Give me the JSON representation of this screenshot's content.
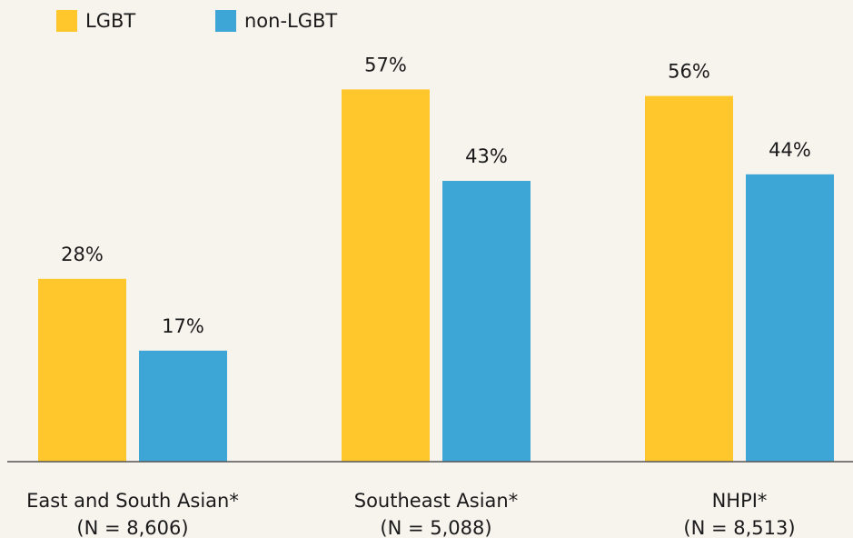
{
  "chart_data": {
    "type": "bar",
    "categories": [
      [
        "East and South Asian*",
        "(N = 8,606)"
      ],
      [
        "Southeast Asian*",
        "(N = 5,088)"
      ],
      [
        "NHPI*",
        "(N = 8,513)"
      ]
    ],
    "series": [
      {
        "name": "LGBT",
        "color": "#ffc72c",
        "values": [
          28,
          57,
          56
        ],
        "value_labels": [
          "28%",
          "57%",
          "56%"
        ]
      },
      {
        "name": "non-LGBT",
        "color": "#3ea6d6",
        "values": [
          17,
          43,
          44
        ],
        "value_labels": [
          "17%",
          "43%",
          "44%"
        ]
      }
    ],
    "ylim": [
      0,
      70
    ],
    "legend": "top-left"
  }
}
